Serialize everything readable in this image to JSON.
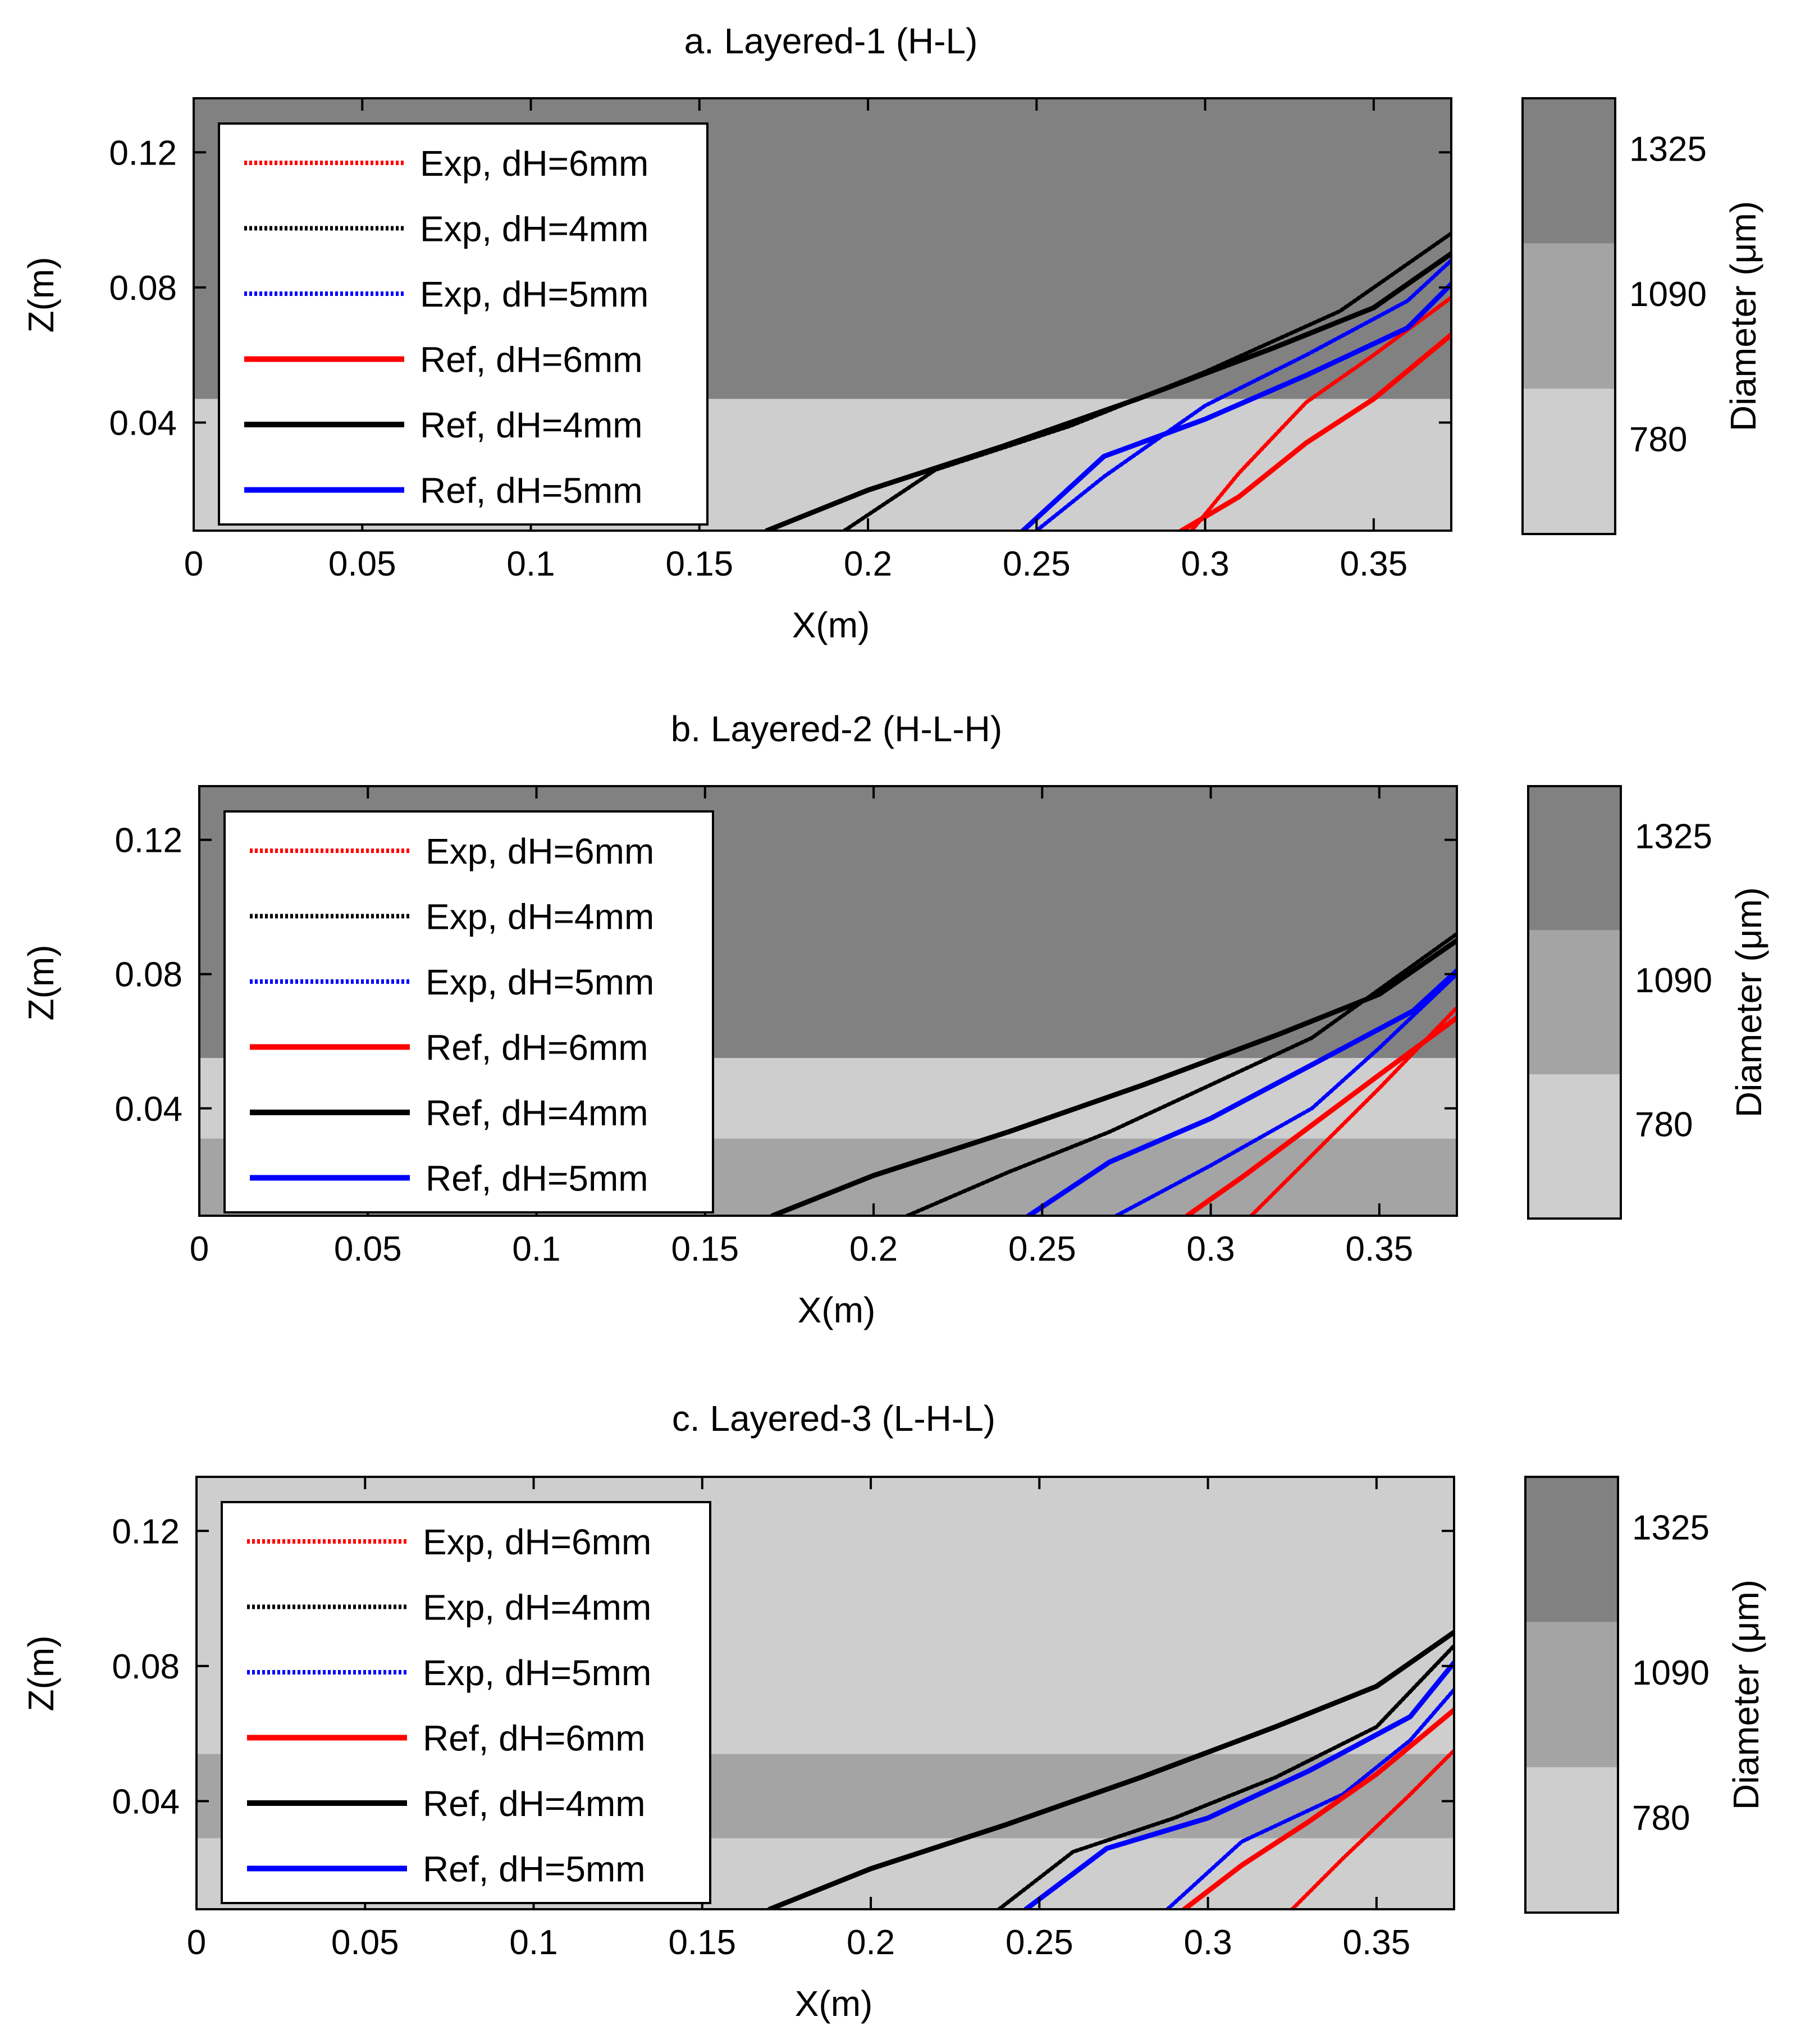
{
  "colors": {
    "dark": "#818181",
    "medium": "#a4a4a4",
    "light": "#cecece",
    "red": "#ff0000",
    "black": "#000000",
    "blue": "#0000ff"
  },
  "chart_data": [
    {
      "type": "line",
      "title": "a. Layered-1 (H-L)",
      "xlabel": "X(m)",
      "ylabel": "Z(m)",
      "xlim": [
        0,
        0.373
      ],
      "ylim": [
        0.008,
        0.136
      ],
      "xticks": [
        0,
        0.05,
        0.1,
        0.15,
        0.2,
        0.25,
        0.3,
        0.35
      ],
      "xtick_labels": [
        "0",
        "0.05",
        "0.1",
        "0.15",
        "0.2",
        "0.25",
        "0.3",
        "0.35"
      ],
      "yticks": [
        0.04,
        0.08,
        0.12
      ],
      "ytick_labels": [
        "0.04",
        "0.08",
        "0.12"
      ],
      "legend_position": "top-left",
      "background_layers": [
        {
          "zmin": 0.008,
          "zmax": 0.047,
          "class": "light"
        },
        {
          "zmin": 0.047,
          "zmax": 0.136,
          "class": "dark"
        }
      ],
      "series": [
        {
          "name": "Exp, dH=6mm",
          "kind": "exp",
          "color": "red",
          "x": [
            0.296,
            0.31,
            0.33,
            0.35,
            0.373
          ],
          "y": [
            0.008,
            0.025,
            0.046,
            0.06,
            0.077
          ]
        },
        {
          "name": "Exp, dH=4mm",
          "kind": "exp",
          "color": "black",
          "x": [
            0.193,
            0.22,
            0.26,
            0.3,
            0.34,
            0.373
          ],
          "y": [
            0.008,
            0.026,
            0.039,
            0.055,
            0.073,
            0.096
          ]
        },
        {
          "name": "Exp, dH=5mm",
          "kind": "exp",
          "color": "blue",
          "x": [
            0.25,
            0.27,
            0.3,
            0.33,
            0.36,
            0.373
          ],
          "y": [
            0.008,
            0.024,
            0.045,
            0.06,
            0.076,
            0.088
          ]
        },
        {
          "name": "Ref, dH=6mm",
          "kind": "ref",
          "color": "red",
          "x": [
            0.293,
            0.31,
            0.33,
            0.35,
            0.373
          ],
          "y": [
            0.008,
            0.018,
            0.034,
            0.047,
            0.066
          ]
        },
        {
          "name": "Ref, dH=4mm",
          "kind": "ref",
          "color": "black",
          "x": [
            0.17,
            0.2,
            0.24,
            0.28,
            0.32,
            0.35,
            0.373
          ],
          "y": [
            0.008,
            0.02,
            0.033,
            0.047,
            0.062,
            0.074,
            0.09
          ]
        },
        {
          "name": "Ref, dH=5mm",
          "kind": "ref",
          "color": "blue",
          "x": [
            0.246,
            0.27,
            0.3,
            0.33,
            0.36,
            0.373
          ],
          "y": [
            0.008,
            0.03,
            0.041,
            0.054,
            0.068,
            0.081
          ]
        }
      ],
      "colorbar": {
        "label": "Diameter (μm)",
        "ticks": [
          "1325",
          "1090",
          "780"
        ]
      }
    },
    {
      "type": "line",
      "title": "b. Layered-2 (H-L-H)",
      "xlabel": "X(m)",
      "ylabel": "Z(m)",
      "xlim": [
        0,
        0.373
      ],
      "ylim": [
        0.008,
        0.136
      ],
      "xticks": [
        0,
        0.05,
        0.1,
        0.15,
        0.2,
        0.25,
        0.3,
        0.35
      ],
      "xtick_labels": [
        "0",
        "0.05",
        "0.1",
        "0.15",
        "0.2",
        "0.25",
        "0.3",
        "0.35"
      ],
      "yticks": [
        0.04,
        0.08,
        0.12
      ],
      "ytick_labels": [
        "0.04",
        "0.08",
        "0.12"
      ],
      "legend_position": "top-left",
      "background_layers": [
        {
          "zmin": 0.008,
          "zmax": 0.031,
          "class": "medium"
        },
        {
          "zmin": 0.031,
          "zmax": 0.055,
          "class": "light"
        },
        {
          "zmin": 0.055,
          "zmax": 0.136,
          "class": "dark"
        }
      ],
      "series": [
        {
          "name": "Exp, dH=6mm",
          "kind": "exp",
          "color": "red",
          "x": [
            0.312,
            0.33,
            0.35,
            0.373
          ],
          "y": [
            0.008,
            0.026,
            0.046,
            0.07
          ]
        },
        {
          "name": "Exp, dH=4mm",
          "kind": "exp",
          "color": "black",
          "x": [
            0.21,
            0.24,
            0.27,
            0.3,
            0.33,
            0.373
          ],
          "y": [
            0.008,
            0.021,
            0.033,
            0.047,
            0.061,
            0.092
          ]
        },
        {
          "name": "Exp, dH=5mm",
          "kind": "exp",
          "color": "blue",
          "x": [
            0.272,
            0.3,
            0.33,
            0.35,
            0.373
          ],
          "y": [
            0.008,
            0.023,
            0.04,
            0.058,
            0.08
          ]
        },
        {
          "name": "Ref, dH=6mm",
          "kind": "ref",
          "color": "red",
          "x": [
            0.293,
            0.31,
            0.33,
            0.35,
            0.373
          ],
          "y": [
            0.008,
            0.02,
            0.035,
            0.05,
            0.067
          ]
        },
        {
          "name": "Ref, dH=4mm",
          "kind": "ref",
          "color": "black",
          "x": [
            0.17,
            0.2,
            0.24,
            0.28,
            0.32,
            0.35,
            0.373
          ],
          "y": [
            0.008,
            0.02,
            0.033,
            0.047,
            0.062,
            0.074,
            0.09
          ]
        },
        {
          "name": "Ref, dH=5mm",
          "kind": "ref",
          "color": "blue",
          "x": [
            0.246,
            0.27,
            0.3,
            0.33,
            0.36,
            0.373
          ],
          "y": [
            0.008,
            0.024,
            0.037,
            0.053,
            0.069,
            0.081
          ]
        }
      ],
      "colorbar": {
        "label": "Diameter (μm)",
        "ticks": [
          "1325",
          "1090",
          "780"
        ]
      }
    },
    {
      "type": "line",
      "title": "c. Layered-3 (L-H-L)",
      "xlabel": "X(m)",
      "ylabel": "Z(m)",
      "xlim": [
        0,
        0.373
      ],
      "ylim": [
        0.008,
        0.136
      ],
      "xticks": [
        0,
        0.05,
        0.1,
        0.15,
        0.2,
        0.25,
        0.3,
        0.35
      ],
      "xtick_labels": [
        "0",
        "0.05",
        "0.1",
        "0.15",
        "0.2",
        "0.25",
        "0.3",
        "0.35"
      ],
      "yticks": [
        0.04,
        0.08,
        0.12
      ],
      "ytick_labels": [
        "0.04",
        "0.08",
        "0.12"
      ],
      "legend_position": "top-left",
      "background_layers": [
        {
          "zmin": 0.008,
          "zmax": 0.029,
          "class": "light"
        },
        {
          "zmin": 0.029,
          "zmax": 0.054,
          "class": "medium"
        },
        {
          "zmin": 0.054,
          "zmax": 0.136,
          "class": "light"
        }
      ],
      "series": [
        {
          "name": "Exp, dH=6mm",
          "kind": "exp",
          "color": "red",
          "x": [
            0.325,
            0.34,
            0.36,
            0.373
          ],
          "y": [
            0.008,
            0.023,
            0.042,
            0.055
          ]
        },
        {
          "name": "Exp, dH=4mm",
          "kind": "exp",
          "color": "black",
          "x": [
            0.238,
            0.26,
            0.29,
            0.32,
            0.35,
            0.373
          ],
          "y": [
            0.008,
            0.025,
            0.035,
            0.047,
            0.062,
            0.086
          ]
        },
        {
          "name": "Exp, dH=5mm",
          "kind": "exp",
          "color": "blue",
          "x": [
            0.288,
            0.31,
            0.34,
            0.36,
            0.373
          ],
          "y": [
            0.008,
            0.028,
            0.042,
            0.058,
            0.073
          ]
        },
        {
          "name": "Ref, dH=6mm",
          "kind": "ref",
          "color": "red",
          "x": [
            0.293,
            0.31,
            0.33,
            0.35,
            0.373
          ],
          "y": [
            0.008,
            0.021,
            0.034,
            0.048,
            0.067
          ]
        },
        {
          "name": "Ref, dH=4mm",
          "kind": "ref",
          "color": "black",
          "x": [
            0.17,
            0.2,
            0.24,
            0.28,
            0.32,
            0.35,
            0.373
          ],
          "y": [
            0.008,
            0.02,
            0.033,
            0.047,
            0.062,
            0.074,
            0.09
          ]
        },
        {
          "name": "Ref, dH=5mm",
          "kind": "ref",
          "color": "blue",
          "x": [
            0.246,
            0.27,
            0.3,
            0.33,
            0.36,
            0.373
          ],
          "y": [
            0.008,
            0.026,
            0.035,
            0.049,
            0.065,
            0.081
          ]
        }
      ],
      "colorbar": {
        "label": "Diameter (μm)",
        "ticks": [
          "1325",
          "1090",
          "780"
        ]
      }
    }
  ]
}
